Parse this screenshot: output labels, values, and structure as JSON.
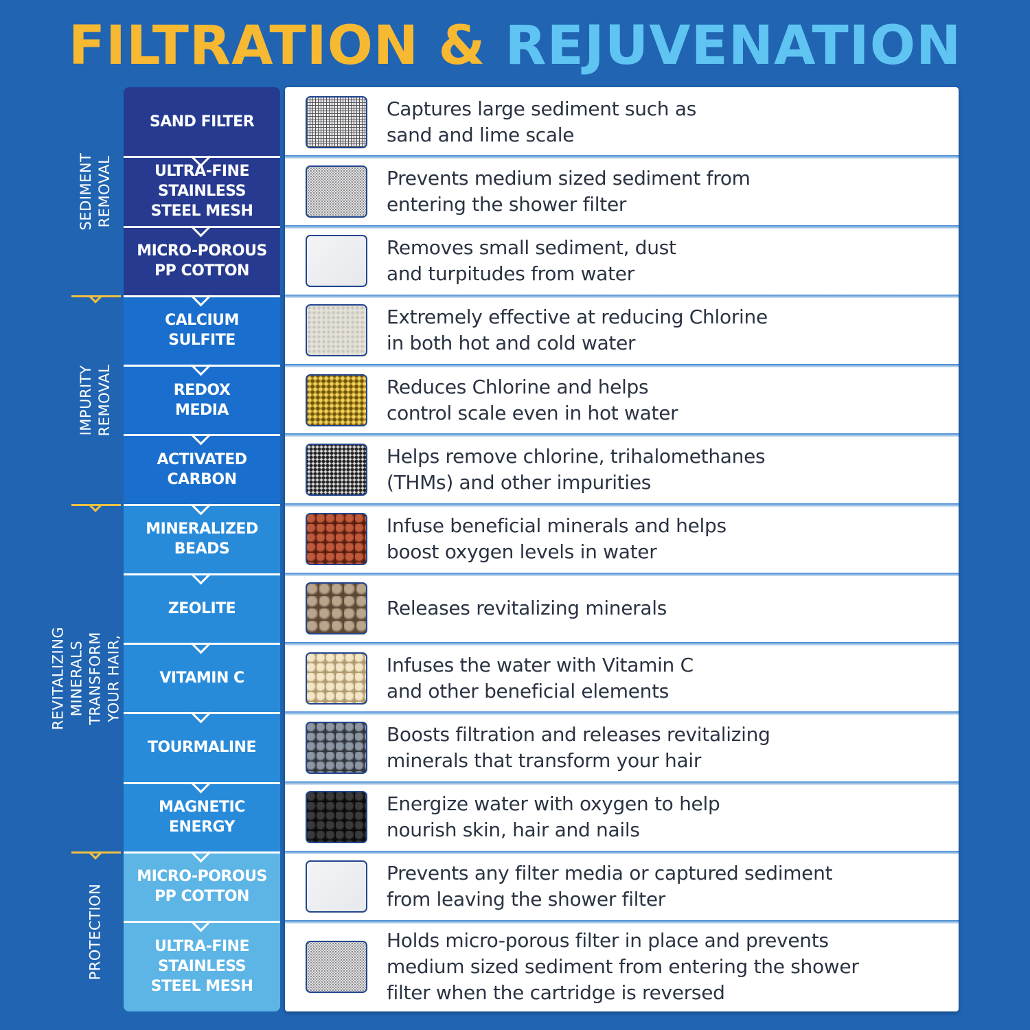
{
  "title": {
    "part1": "FILTRATION &",
    "part2": "REJUVENATION",
    "colors": {
      "part1": "#f7b932",
      "part2": "#5fc4f1"
    }
  },
  "groups": [
    {
      "label": "SEDIMENT REMOVAL",
      "rows": 3,
      "color": "#263a8f"
    },
    {
      "label": "IMPURITY REMOVAL",
      "rows": 3,
      "color": "#1a6fce"
    },
    {
      "label": "REVITALIZING MINERALS TRANSFORM\nYOUR HAIR, SKIN & NAILS",
      "rows": 5,
      "color": "#288bda"
    },
    {
      "label": "PROTECTION",
      "rows": 2,
      "color": "#5db5e6"
    }
  ],
  "stages": [
    {
      "name": "SAND FILTER",
      "texture": "grid-mesh",
      "description": "Captures large sediment such as\nsand and lime scale"
    },
    {
      "name": "ULTRA-FINE\nSTAINLESS\nSTEEL MESH",
      "texture": "fine-mesh",
      "description": "Prevents medium sized sediment from\nentering the shower filter"
    },
    {
      "name": "MICRO-POROUS\nPP COTTON",
      "texture": "white-cotton",
      "description": "Removes small sediment, dust\nand turpitudes from water"
    },
    {
      "name": "CALCIUM\nSULFITE",
      "texture": "white-granules",
      "description": "Extremely effective at reducing Chlorine\nin both hot and cold water"
    },
    {
      "name": "REDOX\nMEDIA",
      "texture": "gold-flakes",
      "description": "Reduces Chlorine and helps\ncontrol scale even in hot water"
    },
    {
      "name": "ACTIVATED\nCARBON",
      "texture": "gray-carbon",
      "description": "Helps remove chlorine, trihalomethanes\n(THMs) and other impurities"
    },
    {
      "name": "MINERALIZED\nBEADS",
      "texture": "red-beads",
      "description": "Infuse beneficial minerals and helps\nboost oxygen levels in water"
    },
    {
      "name": "ZEOLITE",
      "texture": "tan-beads",
      "description": "Releases revitalizing minerals"
    },
    {
      "name": "VITAMIN C",
      "texture": "cream-beads",
      "description": "Infuses the water with Vitamin C\nand other beneficial elements"
    },
    {
      "name": "TOURMALINE",
      "texture": "gray-beads",
      "description": "Boosts filtration and releases revitalizing\nminerals that transform your hair"
    },
    {
      "name": "MAGNETIC\nENERGY",
      "texture": "black-beads",
      "description": "Energize water with oxygen to help\nnourish skin, hair and nails"
    },
    {
      "name": "MICRO-POROUS\nPP COTTON",
      "texture": "white-cotton",
      "description": "Prevents any filter media or captured sediment\nfrom leaving the shower filter"
    },
    {
      "name": "ULTRA-FINE\nSTAINLESS\nSTEEL MESH",
      "texture": "fine-mesh",
      "description": "Holds micro-porous filter in place and prevents\nmedium sized sediment from entering the shower\nfilter when the cartridge is reversed"
    }
  ]
}
